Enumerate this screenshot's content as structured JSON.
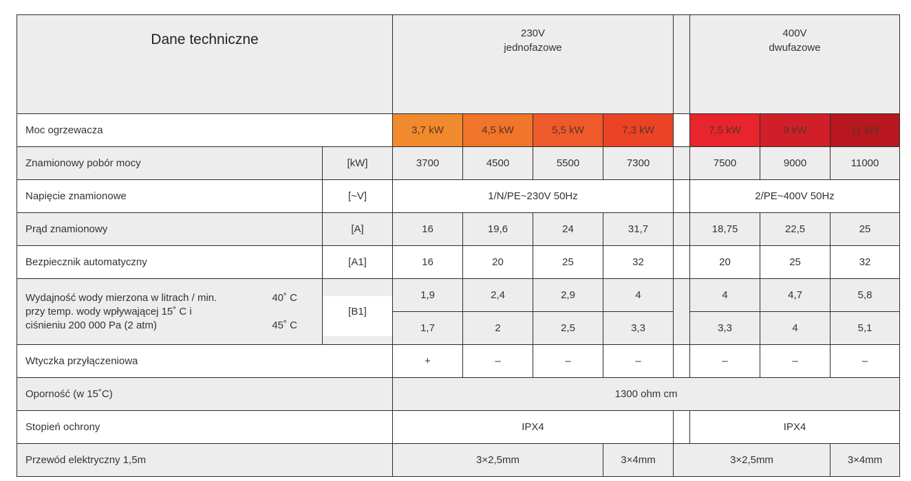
{
  "header": {
    "title": "Dane techniczne",
    "group1_volt": "230V",
    "group1_phase": "jednofazowe",
    "group2_volt": "400V",
    "group2_phase": "dwufazowe"
  },
  "power": {
    "label": "Moc ogrzewacza",
    "values": [
      "3,7 kW",
      "4,5 kW",
      "5,5 kW",
      "7,3 kW",
      "7,5 kW",
      "9 kW",
      "11 kW"
    ],
    "colors": [
      "#f18a2c",
      "#f0742a",
      "#ef5a2b",
      "#ec4326",
      "#e8242c",
      "#d11f2a",
      "#b8171f"
    ]
  },
  "rows": {
    "pobor": {
      "label": "Znamionowy pobór mocy",
      "unit": "[kW]",
      "values": [
        "3700",
        "4500",
        "5500",
        "7300",
        "7500",
        "9000",
        "11000"
      ]
    },
    "napiecie": {
      "label": "Napięcie znamionowe",
      "unit": "[~V]",
      "v230": "1/N/PE~230V 50Hz",
      "v400": "2/PE~400V 50Hz"
    },
    "prad": {
      "label": "Prąd znamionowy",
      "unit": "[A]",
      "values": [
        "16",
        "19,6",
        "24",
        "31,7",
        "18,75",
        "22,5",
        "25"
      ]
    },
    "bezp": {
      "label": "Bezpiecznik automatyczny",
      "unit": "[A1]",
      "values": [
        "16",
        "20",
        "25",
        "32",
        "20",
        "25",
        "32"
      ]
    },
    "wyd": {
      "line1": "Wydajność wody mierzona w litrach / min.",
      "temp1": "40˚ C",
      "line2": "przy temp. wody wpływającej 15˚ C i",
      "line3": "ciśnieniu 200 000 Pa (2 atm)",
      "temp2": "45˚ C",
      "unit": "[B1]",
      "values40": [
        "1,9",
        "2,4",
        "2,9",
        "4",
        "4",
        "4,7",
        "5,8"
      ],
      "values45": [
        "1,7",
        "2",
        "2,5",
        "3,3",
        "3,3",
        "4",
        "5,1"
      ]
    },
    "wtyczka": {
      "label": "Wtyczka przyłączeniowa",
      "values": [
        "+",
        "–",
        "–",
        "–",
        "–",
        "–",
        "–"
      ]
    },
    "opornosc": {
      "label": "Oporność (w 15˚C)",
      "value": "1300 ohm cm"
    },
    "ochrona": {
      "label": "Stopień ochrony",
      "v230": "IPX4",
      "v400": "IPX4"
    },
    "przewod": {
      "label": "Przewód elektryczny 1,5m",
      "a": "3×2,5mm",
      "b": "3×4mm",
      "c": "3×2,5mm",
      "d": "3×4mm"
    }
  }
}
